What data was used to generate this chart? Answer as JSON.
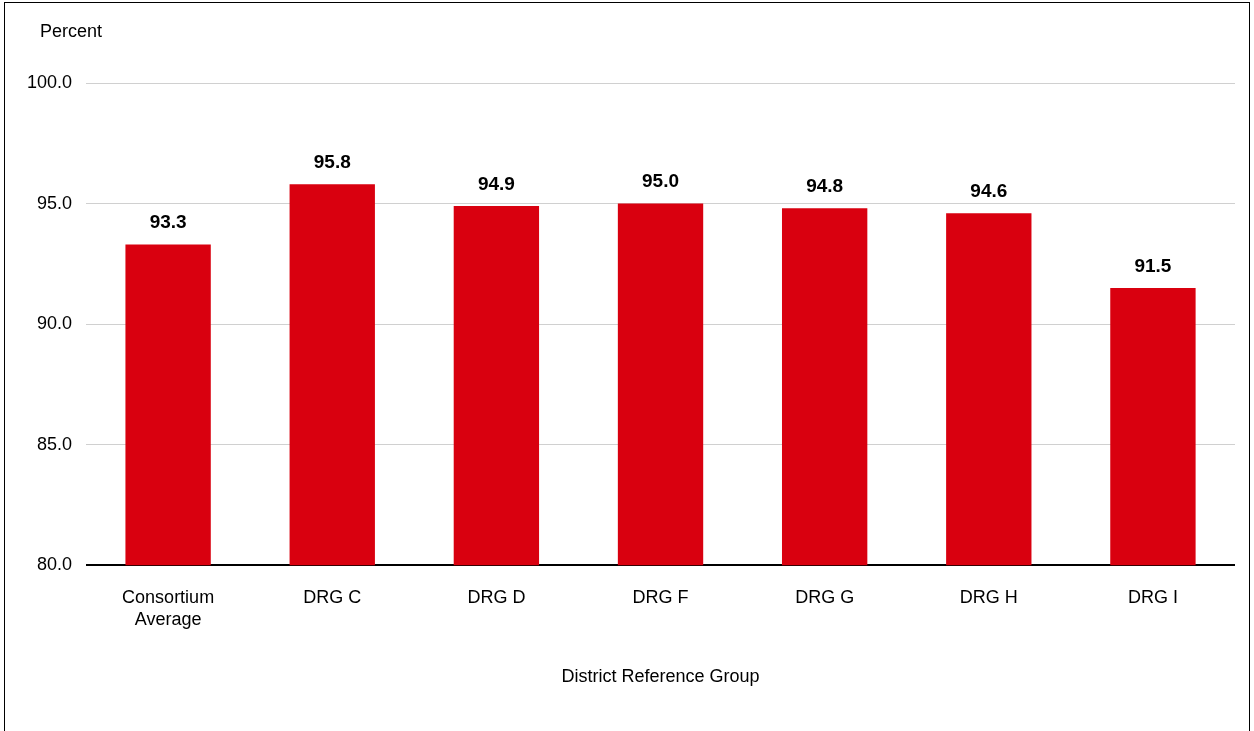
{
  "chart_data": {
    "type": "bar",
    "ylabel": "Percent",
    "xlabel": "District Reference Group",
    "categories": [
      "Consortium Average",
      "DRG C",
      "DRG D",
      "DRG F",
      "DRG G",
      "DRG H",
      "DRG I"
    ],
    "values": [
      93.3,
      95.8,
      94.9,
      95.0,
      94.8,
      94.6,
      91.5
    ],
    "value_labels": [
      "93.3",
      "95.8",
      "94.9",
      "95.0",
      "94.8",
      "94.6",
      "91.5"
    ],
    "color": "#d9000f",
    "ylim": [
      80,
      100
    ],
    "yticks": [
      {
        "value": 80,
        "label": "80.0"
      },
      {
        "value": 85,
        "label": "85.0"
      },
      {
        "value": 90,
        "label": "90.0"
      },
      {
        "value": 95,
        "label": "95.0"
      },
      {
        "value": 100,
        "label": "100.0"
      }
    ],
    "grid": "y",
    "legend": false
  }
}
